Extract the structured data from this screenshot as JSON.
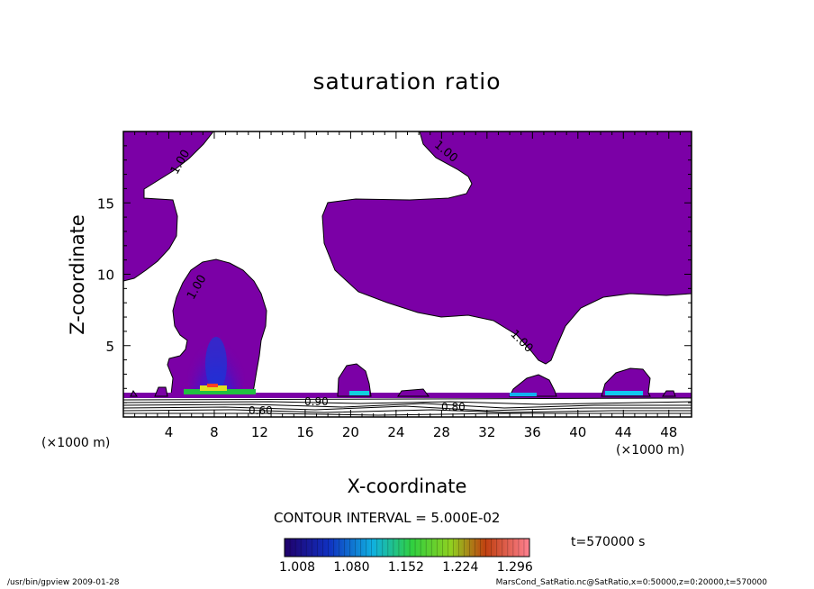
{
  "chart_data": {
    "type": "contour",
    "title": "saturation ratio",
    "xlabel": "X-coordinate",
    "ylabel": "Z-coordinate",
    "x_unit": "(×1000 m)",
    "x_unit_right": "(×1000 m)",
    "xlim": [
      0,
      50
    ],
    "ylim": [
      0,
      20
    ],
    "x_ticks": [
      4,
      8,
      12,
      16,
      20,
      24,
      28,
      32,
      36,
      40,
      44,
      48
    ],
    "y_ticks": [
      5,
      10,
      15
    ],
    "contour_labels": [
      "1.00",
      "1.00",
      "1.00",
      "1.00",
      "0.90",
      "0.80",
      "0.60"
    ],
    "fill_color": "#7B00A6",
    "contour_interval": "CONTOUR INTERVAL = 5.000E-02",
    "colorbar": {
      "range": [
        1.008,
        1.332
      ],
      "tick_values": [
        1.008,
        1.08,
        1.152,
        1.224,
        1.296
      ],
      "tick_labels": [
        "1.008",
        "1.080",
        "1.152",
        "1.224",
        "1.296"
      ]
    },
    "time": "t=570000 s",
    "footer_left": "/usr/bin/gpview  2009-01-28",
    "footer_right": "MarsCond_SatRatio.nc@SatRatio,x=0:50000,z=0:20000,t=570000"
  }
}
